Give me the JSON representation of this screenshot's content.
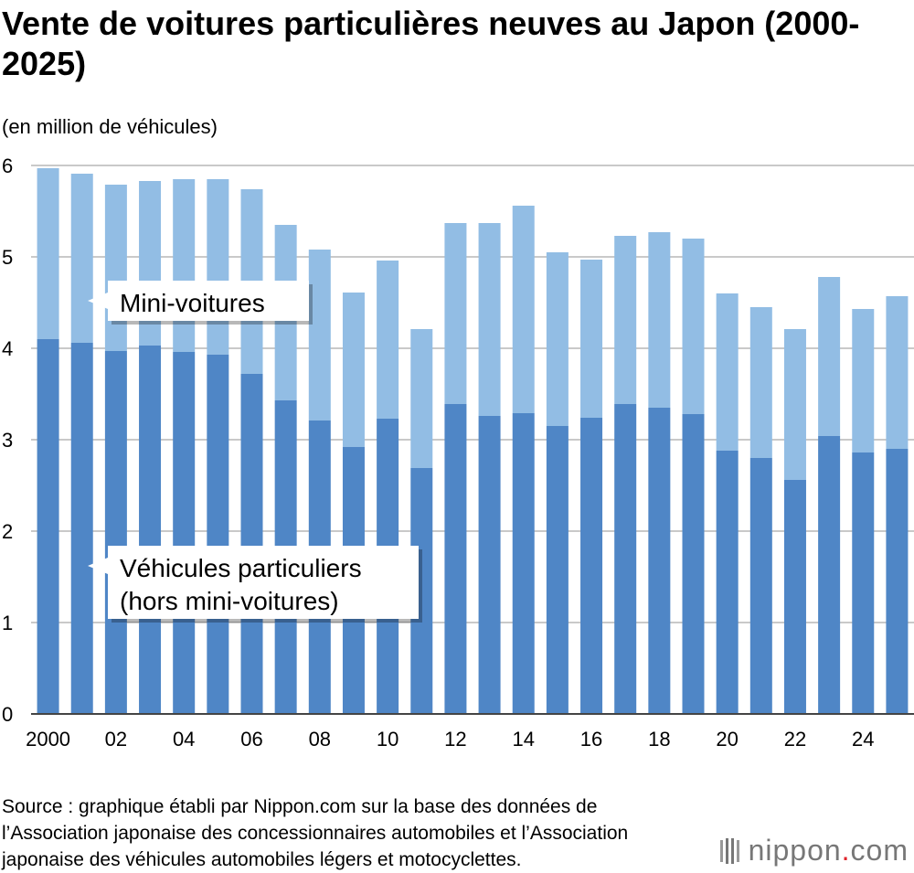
{
  "title": "Vente de voitures particulières neuves au Japon (2000-2025)",
  "unit_label": "(en million de véhicules)",
  "source": "Source : graphique établi par Nippon.com sur la base des données de l’Association japonaise des concessionnaires automobiles et l’Association japonaise des véhicules automobiles légers et motocyclettes.",
  "logo": {
    "name": "nippon",
    "dot": ".",
    "suffix": "com"
  },
  "colors": {
    "mini": "#92bde4",
    "regular": "#4f86c6",
    "grid": "#c9c9c9",
    "axis": "#444444"
  },
  "chart_data": {
    "type": "bar",
    "stacked": true,
    "categories": [
      "2000",
      "2001",
      "2002",
      "2003",
      "2004",
      "2005",
      "2006",
      "2007",
      "2008",
      "2009",
      "2010",
      "2011",
      "2012",
      "2013",
      "2014",
      "2015",
      "2016",
      "2017",
      "2018",
      "2019",
      "2020",
      "2021",
      "2022",
      "2023",
      "2024",
      "2025"
    ],
    "tick_labels": [
      "2000",
      "",
      "02",
      "",
      "04",
      "",
      "06",
      "",
      "08",
      "",
      "10",
      "",
      "12",
      "",
      "14",
      "",
      "16",
      "",
      "18",
      "",
      "20",
      "",
      "22",
      "",
      "24",
      ""
    ],
    "yticks": [
      "0",
      "1",
      "2",
      "3",
      "4",
      "5",
      "6"
    ],
    "ylim": [
      0,
      6
    ],
    "grid": true,
    "series": [
      {
        "name": "Véhicules particuliers (hors mini-voitures)",
        "values": [
          4.1,
          4.06,
          3.97,
          4.03,
          3.96,
          3.93,
          3.72,
          3.43,
          3.21,
          2.92,
          3.23,
          2.69,
          3.39,
          3.26,
          3.29,
          3.15,
          3.24,
          3.39,
          3.35,
          3.28,
          2.88,
          2.8,
          2.56,
          3.04,
          2.86,
          2.9
        ]
      },
      {
        "name": "Mini-voitures",
        "values": [
          1.87,
          1.85,
          1.82,
          1.8,
          1.89,
          1.92,
          2.02,
          1.92,
          1.87,
          1.69,
          1.73,
          1.52,
          1.98,
          2.11,
          2.27,
          1.9,
          1.73,
          1.84,
          1.92,
          1.92,
          1.72,
          1.65,
          1.65,
          1.74,
          1.57,
          1.67
        ]
      }
    ],
    "annotations": {
      "mini": "Mini-voitures",
      "regular_line1": "Véhicules particuliers",
      "regular_line2": "(hors mini-voitures)"
    }
  }
}
